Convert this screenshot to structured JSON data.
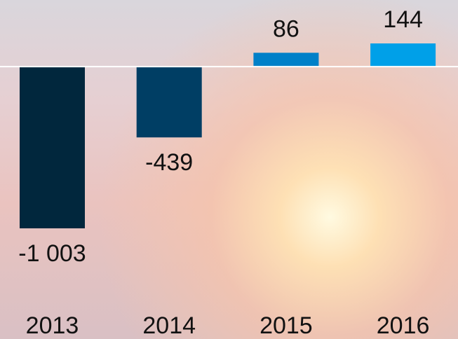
{
  "chart_data": {
    "type": "bar",
    "categories": [
      "2013",
      "2014",
      "2015",
      "2016"
    ],
    "values": [
      -1003,
      -439,
      86,
      144
    ],
    "value_labels": [
      "-1 003",
      "-439",
      "86",
      "144"
    ],
    "colors": [
      "#01273d",
      "#003e64",
      "#0080c8",
      "#00a0e8"
    ]
  }
}
